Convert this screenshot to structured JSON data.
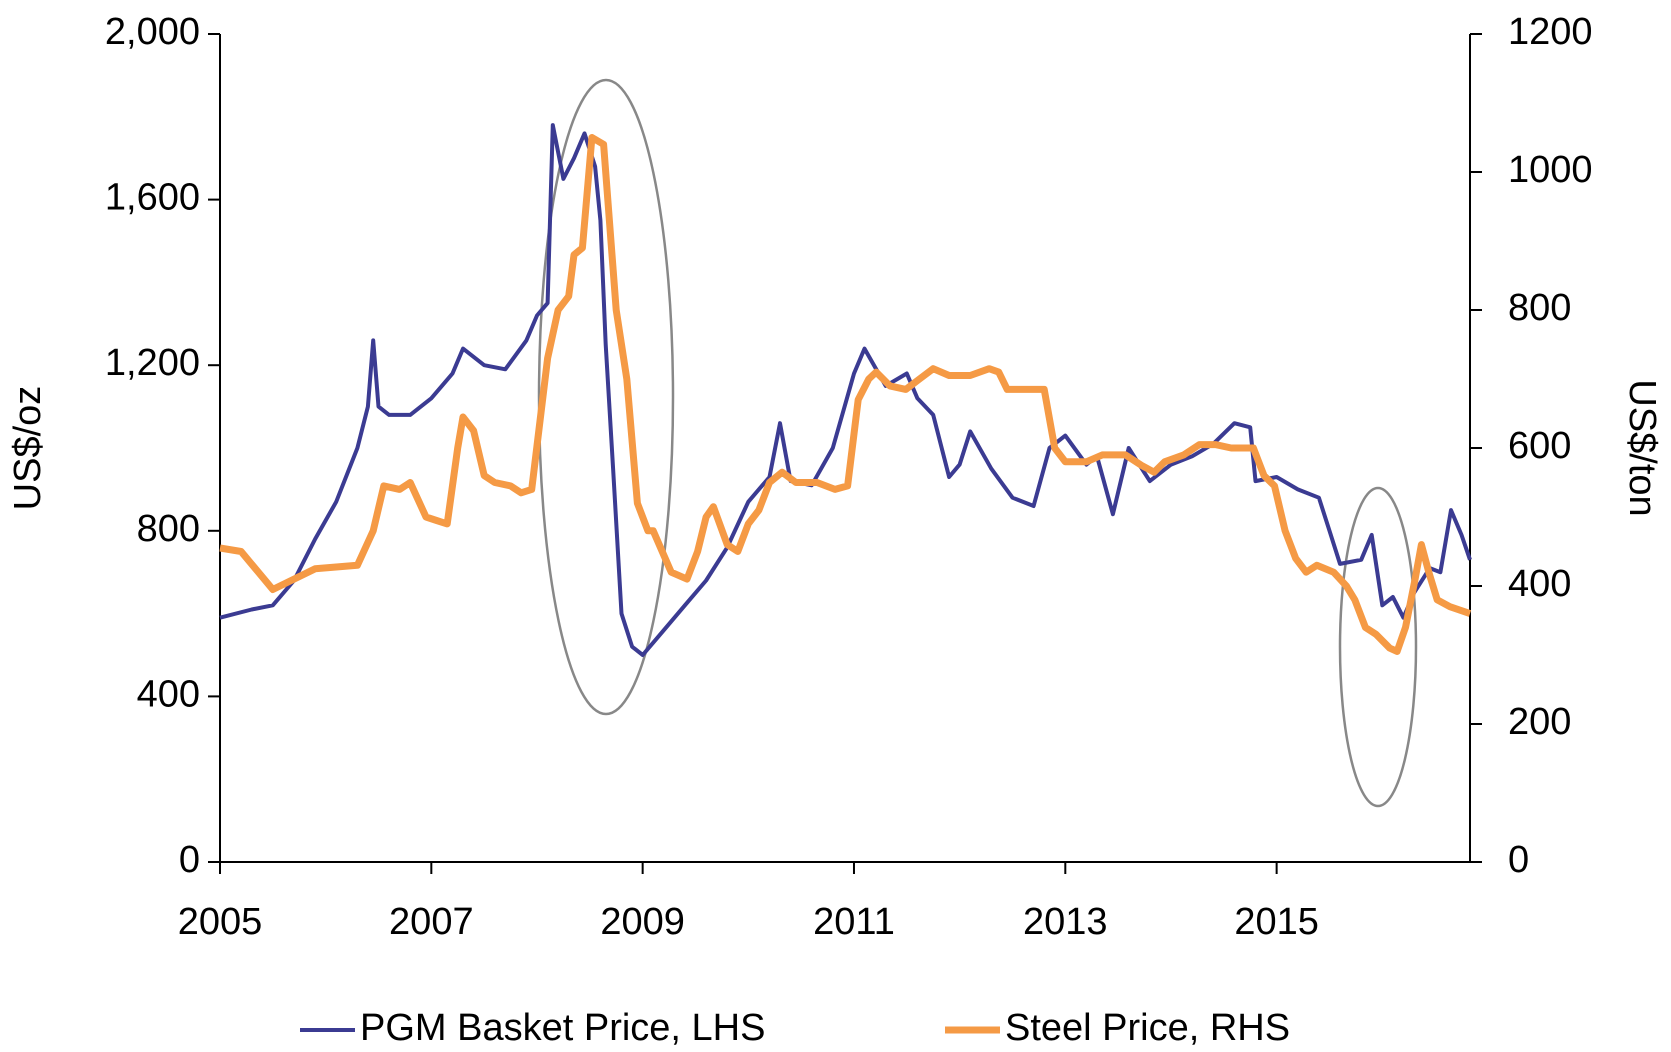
{
  "chart_data": {
    "type": "line",
    "y_label": "US$/oz",
    "y2_label": "US$/ton",
    "xlim": [
      2005,
      2016.83
    ],
    "xticks": [
      2005,
      2007,
      2009,
      2011,
      2013,
      2015
    ],
    "ylim": [
      0,
      2000
    ],
    "yticks": [
      0,
      400,
      800,
      {
        "value": 1200,
        "label": "1,200"
      },
      {
        "value": 1600,
        "label": "1,600"
      },
      {
        "value": 2000,
        "label": "2,000"
      }
    ],
    "y2lim": [
      0,
      1200
    ],
    "y2ticks": [
      0,
      200,
      400,
      600,
      800,
      1000,
      1200
    ],
    "legend": "bottom",
    "series": [
      {
        "name": "PGM Basket Price, LHS",
        "color": "#3b3b92",
        "axis": "y",
        "x": [
          2005.0,
          2005.3,
          2005.5,
          2005.7,
          2005.9,
          2006.1,
          2006.3,
          2006.4,
          2006.45,
          2006.5,
          2006.6,
          2006.8,
          2007.0,
          2007.2,
          2007.3,
          2007.5,
          2007.7,
          2007.9,
          2008.0,
          2008.1,
          2008.15,
          2008.25,
          2008.35,
          2008.45,
          2008.55,
          2008.6,
          2008.65,
          2008.72,
          2008.8,
          2008.9,
          2009.0,
          2009.2,
          2009.4,
          2009.6,
          2009.8,
          2010.0,
          2010.2,
          2010.3,
          2010.4,
          2010.6,
          2010.8,
          2011.0,
          2011.1,
          2011.3,
          2011.5,
          2011.6,
          2011.75,
          2011.9,
          2012.0,
          2012.1,
          2012.3,
          2012.5,
          2012.7,
          2012.85,
          2013.0,
          2013.2,
          2013.3,
          2013.45,
          2013.6,
          2013.8,
          2014.0,
          2014.2,
          2014.4,
          2014.6,
          2014.75,
          2014.8,
          2015.0,
          2015.2,
          2015.4,
          2015.5,
          2015.6,
          2015.8,
          2015.9,
          2016.0,
          2016.1,
          2016.2,
          2016.3,
          2016.45,
          2016.55,
          2016.65,
          2016.75,
          2016.83
        ],
        "values": [
          590,
          610,
          620,
          680,
          780,
          870,
          1000,
          1100,
          1260,
          1100,
          1080,
          1080,
          1120,
          1180,
          1240,
          1200,
          1190,
          1260,
          1320,
          1350,
          1780,
          1650,
          1700,
          1760,
          1680,
          1550,
          1250,
          950,
          600,
          520,
          500,
          560,
          620,
          680,
          760,
          870,
          930,
          1060,
          920,
          910,
          1000,
          1180,
          1240,
          1150,
          1180,
          1120,
          1080,
          930,
          960,
          1040,
          950,
          880,
          860,
          1000,
          1030,
          960,
          980,
          840,
          1000,
          920,
          960,
          980,
          1010,
          1060,
          1050,
          920,
          930,
          900,
          880,
          800,
          720,
          730,
          790,
          620,
          640,
          590,
          650,
          710,
          700,
          850,
          790,
          730
        ]
      },
      {
        "name": "Steel Price, RHS",
        "color": "#f59a45",
        "axis": "y2",
        "x": [
          2005.0,
          2005.2,
          2005.5,
          2005.7,
          2005.9,
          2006.3,
          2006.45,
          2006.55,
          2006.7,
          2006.8,
          2006.95,
          2007.05,
          2007.15,
          2007.25,
          2007.3,
          2007.4,
          2007.5,
          2007.6,
          2007.75,
          2007.85,
          2007.95,
          2008.1,
          2008.2,
          2008.3,
          2008.35,
          2008.43,
          2008.52,
          2008.63,
          2008.75,
          2008.85,
          2008.95,
          2009.05,
          2009.1,
          2009.27,
          2009.42,
          2009.52,
          2009.6,
          2009.67,
          2009.8,
          2009.9,
          2010.0,
          2010.1,
          2010.2,
          2010.32,
          2010.45,
          2010.65,
          2010.82,
          2010.94,
          2011.04,
          2011.14,
          2011.21,
          2011.34,
          2011.49,
          2011.62,
          2011.75,
          2011.9,
          2012.1,
          2012.28,
          2012.37,
          2012.45,
          2012.8,
          2012.9,
          2013.0,
          2013.2,
          2013.35,
          2013.57,
          2013.72,
          2013.84,
          2013.94,
          2014.12,
          2014.27,
          2014.42,
          2014.57,
          2014.78,
          2014.88,
          2014.98,
          2015.08,
          2015.18,
          2015.28,
          2015.38,
          2015.54,
          2015.66,
          2015.74,
          2015.84,
          2015.94,
          2016.07,
          2016.14,
          2016.22,
          2016.31,
          2016.37,
          2016.44,
          2016.52,
          2016.64,
          2016.83
        ],
        "values": [
          455,
          450,
          395,
          410,
          425,
          430,
          480,
          545,
          540,
          550,
          500,
          495,
          490,
          600,
          645,
          625,
          560,
          550,
          545,
          535,
          540,
          730,
          800,
          820,
          880,
          890,
          1050,
          1040,
          800,
          700,
          520,
          480,
          480,
          420,
          410,
          450,
          500,
          515,
          460,
          450,
          490,
          510,
          550,
          565,
          550,
          550,
          540,
          545,
          670,
          700,
          710,
          690,
          685,
          700,
          715,
          705,
          705,
          715,
          710,
          685,
          685,
          600,
          580,
          580,
          590,
          590,
          575,
          565,
          580,
          590,
          605,
          605,
          600,
          600,
          560,
          545,
          480,
          440,
          420,
          430,
          420,
          400,
          380,
          340,
          330,
          310,
          305,
          340,
          410,
          460,
          420,
          380,
          370,
          360
        ]
      }
    ]
  }
}
